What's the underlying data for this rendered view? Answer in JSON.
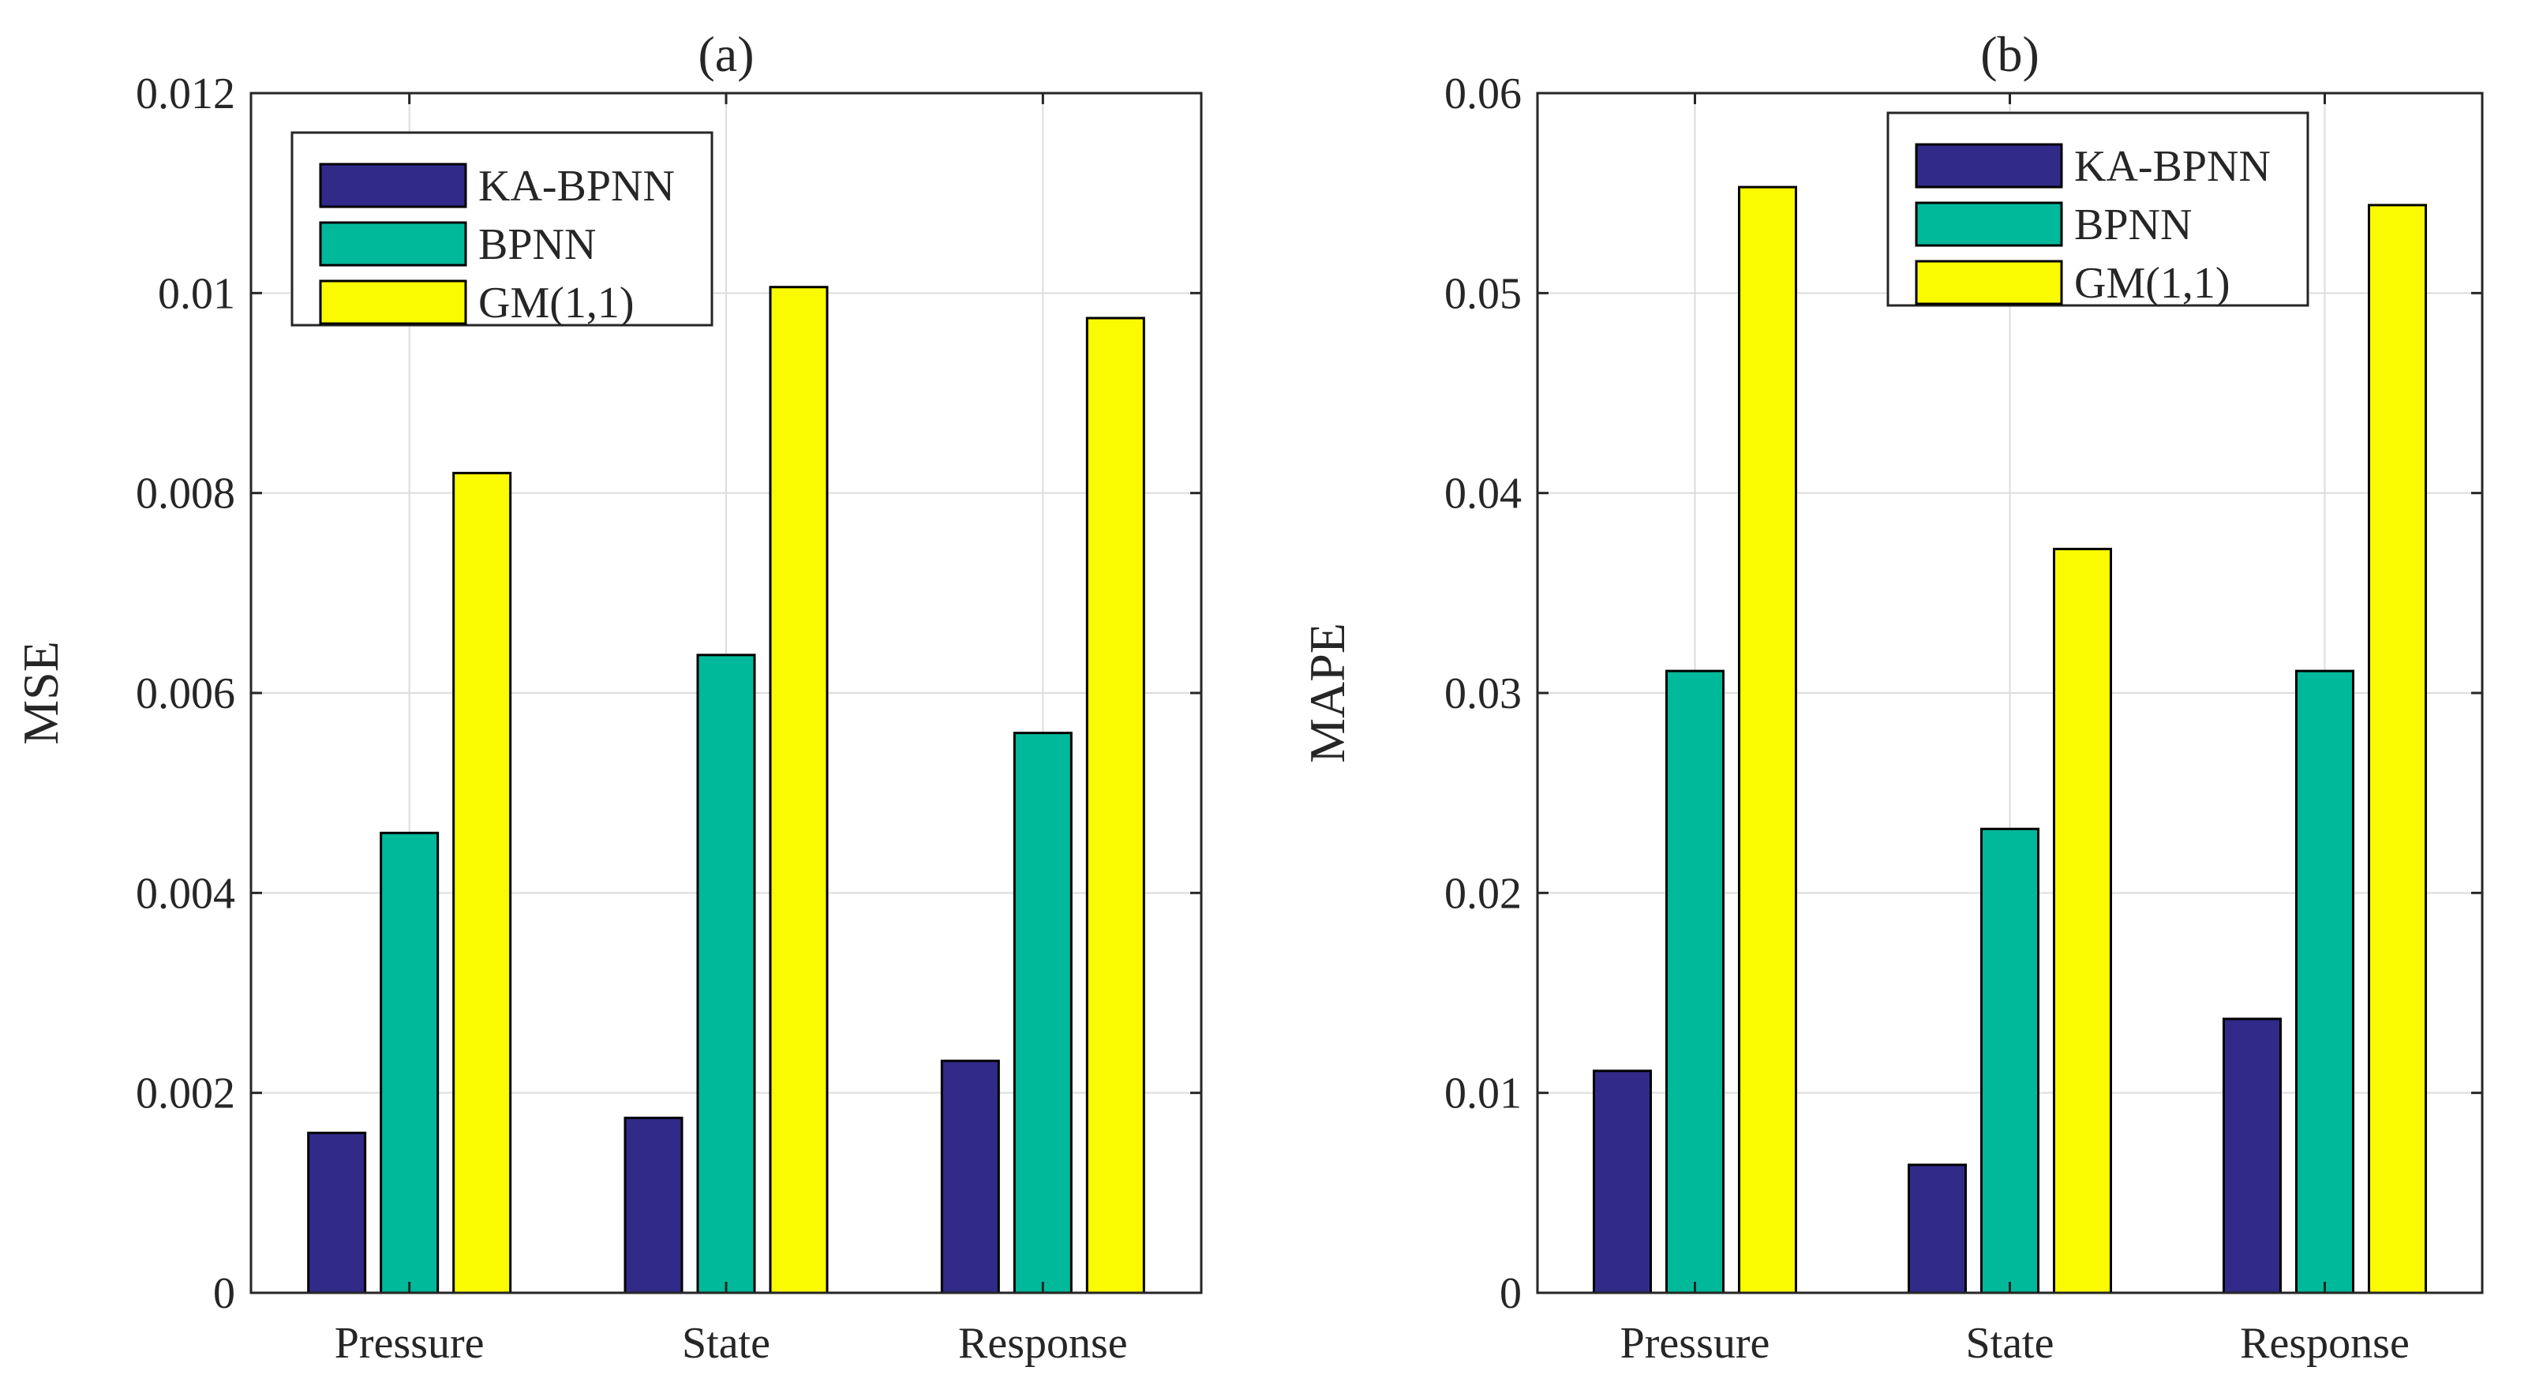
{
  "chart_data": [
    {
      "type": "bar",
      "title": "(a)",
      "ylabel": "MSE",
      "xlabel": "",
      "categories": [
        "Pressure",
        "State",
        "Response"
      ],
      "ylim": [
        0,
        0.012
      ],
      "yticks": [
        "0",
        "0.002",
        "0.004",
        "0.006",
        "0.008",
        "0.01",
        "0.012"
      ],
      "ytick_values": [
        0,
        0.002,
        0.004,
        0.006,
        0.008,
        0.01,
        0.012
      ],
      "grid": true,
      "legend_position": "top-left",
      "series": [
        {
          "name": "KA-BPNN",
          "color": "#312A89",
          "values": [
            0.0016,
            0.00175,
            0.00232
          ]
        },
        {
          "name": "BPNN",
          "color": "#00B99A",
          "values": [
            0.0046,
            0.00638,
            0.0056
          ]
        },
        {
          "name": "GM(1,1)",
          "color": "#FAFA00",
          "values": [
            0.0082,
            0.01006,
            0.00975
          ]
        }
      ]
    },
    {
      "type": "bar",
      "title": "(b)",
      "ylabel": "MAPE",
      "xlabel": "",
      "categories": [
        "Pressure",
        "State",
        "Response"
      ],
      "ylim": [
        0,
        0.06
      ],
      "yticks": [
        "0",
        "0.01",
        "0.02",
        "0.03",
        "0.04",
        "0.05",
        "0.06"
      ],
      "ytick_values": [
        0,
        0.01,
        0.02,
        0.03,
        0.04,
        0.05,
        0.06
      ],
      "grid": true,
      "legend_position": "top-right",
      "series": [
        {
          "name": "KA-BPNN",
          "color": "#312A89",
          "values": [
            0.0111,
            0.0064,
            0.0137
          ]
        },
        {
          "name": "BPNN",
          "color": "#00B99A",
          "values": [
            0.0311,
            0.0232,
            0.0311
          ]
        },
        {
          "name": "GM(1,1)",
          "color": "#FAFA00",
          "values": [
            0.0553,
            0.0372,
            0.0544
          ]
        }
      ]
    }
  ]
}
